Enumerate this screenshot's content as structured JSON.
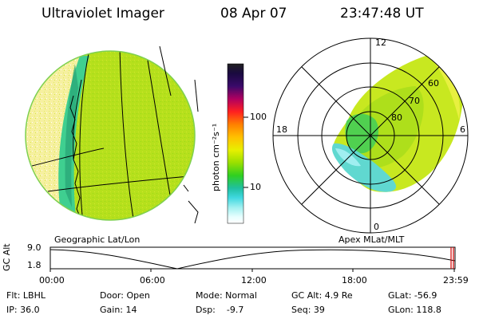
{
  "header": {
    "instrument": "Ultraviolet Imager",
    "date": "08 Apr 07",
    "time": "23:47:48 UT"
  },
  "colorbar": {
    "unit_label": "photon cm⁻²s⁻¹",
    "tick_100": "100",
    "tick_10": "10",
    "colors": [
      "#202020",
      "#1a0a40",
      "#3a0a6a",
      "#b00060",
      "#ff2020",
      "#ff8000",
      "#ffc000",
      "#e8f000",
      "#9ae000",
      "#30d020",
      "#20c0a0",
      "#40d8e0",
      "#a0f0f0",
      "#e8ffff",
      "#ffffff"
    ]
  },
  "left_panel": {
    "caption": "Geographic Lat/Lon"
  },
  "right_panel": {
    "caption": "Apex MLat/MLT",
    "mlt_12": "12",
    "mlt_18": "18",
    "mlt_6": "6",
    "mlt_0": "0",
    "lat_60": "60",
    "lat_70": "70",
    "lat_80": "80"
  },
  "altitude_plot": {
    "ylabel": "GC Alt",
    "ytick_top": "9.0",
    "ytick_bottom": "1.8",
    "xticks": [
      "00:00",
      "06:00",
      "12:00",
      "18:00",
      "23:59"
    ]
  },
  "status": {
    "flt": "Flt: LBHL",
    "door": "Door: Open",
    "mode": "Mode: Normal",
    "gc_alt": "GC Alt: 4.9 Re",
    "glat": "GLat: -56.9",
    "ip": "IP: 36.0",
    "gain": "Gain: 14",
    "dsp": "Dsp:    -9.7",
    "seq": "Seq: 39",
    "glon": "GLon: 118.8"
  }
}
